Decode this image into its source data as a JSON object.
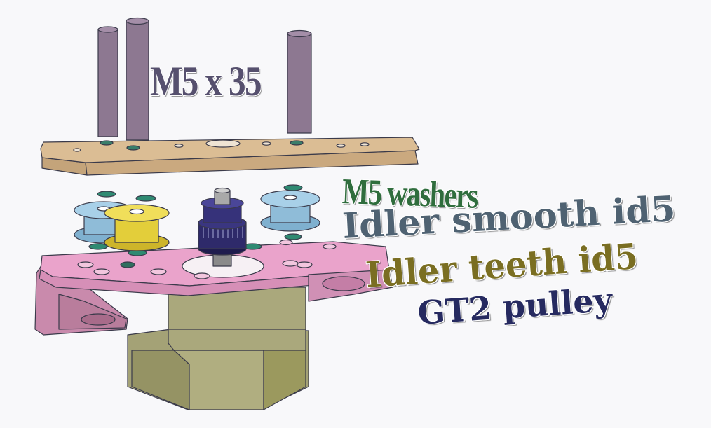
{
  "labels": {
    "bolts": "M5 x 35",
    "washers": "M5 washers",
    "idler_smooth": "Idler smooth id5",
    "idler_teeth": "Idler teeth id5",
    "gt2_pulley": "GT2 pulley"
  },
  "colors": {
    "background": "#f8f8fa",
    "bolts_text": "#56506e",
    "washers_text": "#2f6d3d",
    "idler_smooth_text": "#4f6272",
    "idler_teeth_text": "#7a6e22",
    "gt2_pulley_text": "#262a60",
    "bolt": "#8d7891",
    "top_plate": "#d8b991",
    "bottom_bracket": "#e8a4c8",
    "washer": "#2f8a72",
    "idler_smooth": "#8fbcd8",
    "idler_teeth": "#e3ce3a",
    "gt2_pulley": "#2e2a6a",
    "motor": "#a4a276"
  }
}
